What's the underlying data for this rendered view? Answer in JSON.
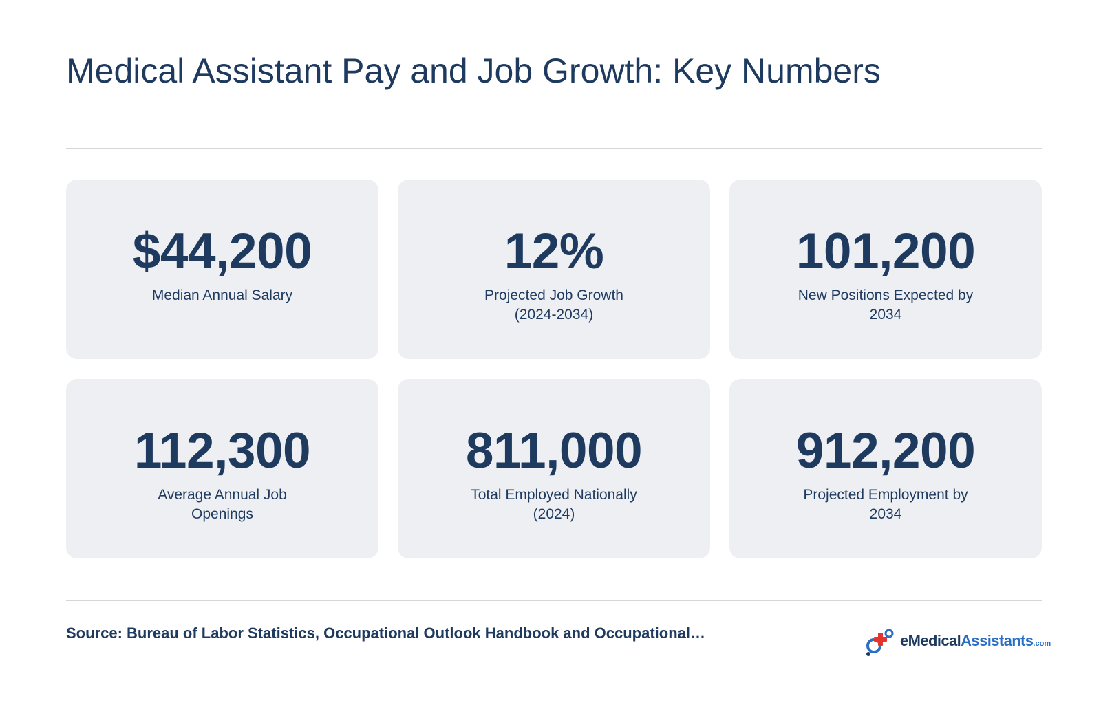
{
  "title": "Medical Assistant Pay and Job Growth: Key Numbers",
  "cards": [
    {
      "value": "$44,200",
      "label": "Median Annual Salary"
    },
    {
      "value": "12%",
      "label": "Projected Job Growth (2024-2034)"
    },
    {
      "value": "101,200",
      "label": "New Positions Expected by 2034"
    },
    {
      "value": "112,300",
      "label": "Average Annual Job Openings"
    },
    {
      "value": "811,000",
      "label": "Total Employed Nationally (2024)"
    },
    {
      "value": "912,200",
      "label": "Projected Employment by 2034"
    }
  ],
  "source": "Source: Bureau of Labor Statistics, Occupational Outlook Handbook and Occupational…",
  "logo": {
    "part1": "eMedical",
    "part2": "Assistants",
    "part3": ".com",
    "icon": "medical-cross-icon"
  },
  "colors": {
    "text": "#1f3a5f",
    "card_bg": "#edeff2",
    "accent_blue": "#2a6fc4",
    "accent_red": "#e3342f"
  }
}
